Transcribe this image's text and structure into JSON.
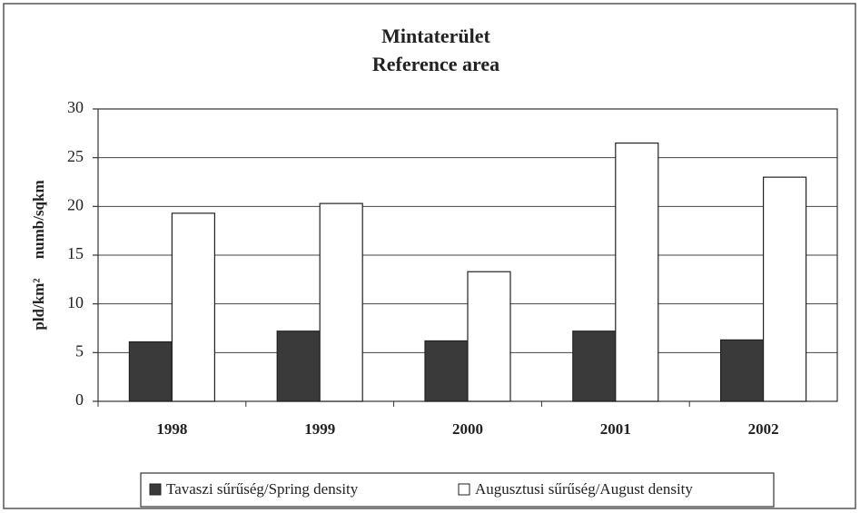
{
  "chart_data": {
    "type": "bar",
    "title": "Mintaterület",
    "subtitle": "Reference area",
    "ylabel": "pld/km²     numb/sqkm",
    "categories": [
      "1998",
      "1999",
      "2000",
      "2001",
      "2002"
    ],
    "series": [
      {
        "name": "Tavaszi sűrűség/Spring density",
        "color": "#3a3a3a",
        "values": [
          6.1,
          7.2,
          6.2,
          7.2,
          6.3
        ]
      },
      {
        "name": "Augusztusi sűrűség/August density",
        "color": "#ffffff",
        "values": [
          19.3,
          20.3,
          13.3,
          26.5,
          23.0
        ]
      }
    ],
    "ylim": [
      0,
      30
    ],
    "yticks": [
      0,
      5,
      10,
      15,
      20,
      25,
      30
    ],
    "grid": true,
    "legend": "bottom"
  }
}
